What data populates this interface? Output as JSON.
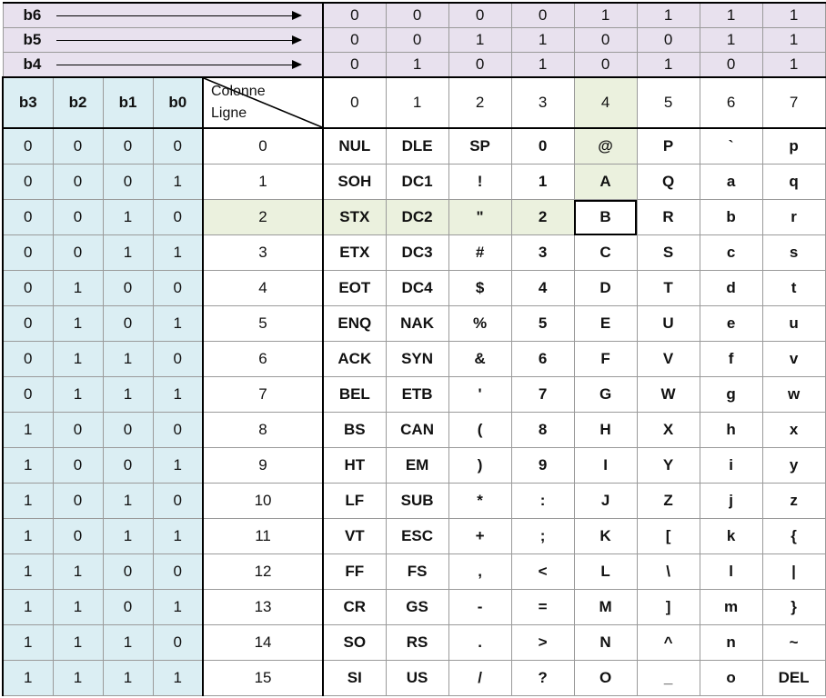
{
  "bit_rows": [
    {
      "label": "b6",
      "values": [
        "0",
        "0",
        "0",
        "0",
        "1",
        "1",
        "1",
        "1"
      ]
    },
    {
      "label": "b5",
      "values": [
        "0",
        "0",
        "1",
        "1",
        "0",
        "0",
        "1",
        "1"
      ]
    },
    {
      "label": "b4",
      "values": [
        "0",
        "1",
        "0",
        "1",
        "0",
        "1",
        "0",
        "1"
      ]
    }
  ],
  "header": {
    "bits": [
      "b3",
      "b2",
      "b1",
      "b0"
    ],
    "corner_top": "Colonne",
    "corner_bottom": "Ligne",
    "columns": [
      "0",
      "1",
      "2",
      "3",
      "4",
      "5",
      "6",
      "7"
    ]
  },
  "rows": [
    {
      "bits": [
        "0",
        "0",
        "0",
        "0"
      ],
      "line": "0",
      "chars": [
        "NUL",
        "DLE",
        "SP",
        "0",
        "@",
        "P",
        "`",
        "p"
      ]
    },
    {
      "bits": [
        "0",
        "0",
        "0",
        "1"
      ],
      "line": "1",
      "chars": [
        "SOH",
        "DC1",
        "!",
        "1",
        "A",
        "Q",
        "a",
        "q"
      ]
    },
    {
      "bits": [
        "0",
        "0",
        "1",
        "0"
      ],
      "line": "2",
      "chars": [
        "STX",
        "DC2",
        "\"",
        "2",
        "B",
        "R",
        "b",
        "r"
      ]
    },
    {
      "bits": [
        "0",
        "0",
        "1",
        "1"
      ],
      "line": "3",
      "chars": [
        "ETX",
        "DC3",
        "#",
        "3",
        "C",
        "S",
        "c",
        "s"
      ]
    },
    {
      "bits": [
        "0",
        "1",
        "0",
        "0"
      ],
      "line": "4",
      "chars": [
        "EOT",
        "DC4",
        "$",
        "4",
        "D",
        "T",
        "d",
        "t"
      ]
    },
    {
      "bits": [
        "0",
        "1",
        "0",
        "1"
      ],
      "line": "5",
      "chars": [
        "ENQ",
        "NAK",
        "%",
        "5",
        "E",
        "U",
        "e",
        "u"
      ]
    },
    {
      "bits": [
        "0",
        "1",
        "1",
        "0"
      ],
      "line": "6",
      "chars": [
        "ACK",
        "SYN",
        "&",
        "6",
        "F",
        "V",
        "f",
        "v"
      ]
    },
    {
      "bits": [
        "0",
        "1",
        "1",
        "1"
      ],
      "line": "7",
      "chars": [
        "BEL",
        "ETB",
        "'",
        "7",
        "G",
        "W",
        "g",
        "w"
      ]
    },
    {
      "bits": [
        "1",
        "0",
        "0",
        "0"
      ],
      "line": "8",
      "chars": [
        "BS",
        "CAN",
        "(",
        "8",
        "H",
        "X",
        "h",
        "x"
      ]
    },
    {
      "bits": [
        "1",
        "0",
        "0",
        "1"
      ],
      "line": "9",
      "chars": [
        "HT",
        "EM",
        ")",
        "9",
        "I",
        "Y",
        "i",
        "y"
      ]
    },
    {
      "bits": [
        "1",
        "0",
        "1",
        "0"
      ],
      "line": "10",
      "chars": [
        "LF",
        "SUB",
        "*",
        ":",
        "J",
        "Z",
        "j",
        "z"
      ]
    },
    {
      "bits": [
        "1",
        "0",
        "1",
        "1"
      ],
      "line": "11",
      "chars": [
        "VT",
        "ESC",
        "+",
        ";",
        "K",
        "[",
        "k",
        "{"
      ]
    },
    {
      "bits": [
        "1",
        "1",
        "0",
        "0"
      ],
      "line": "12",
      "chars": [
        "FF",
        "FS",
        ",",
        "<",
        "L",
        "\\",
        "l",
        "|"
      ]
    },
    {
      "bits": [
        "1",
        "1",
        "0",
        "1"
      ],
      "line": "13",
      "chars": [
        "CR",
        "GS",
        "-",
        "=",
        "M",
        "]",
        "m",
        "}"
      ]
    },
    {
      "bits": [
        "1",
        "1",
        "1",
        "0"
      ],
      "line": "14",
      "chars": [
        "SO",
        "RS",
        ".",
        ">",
        "N",
        "^",
        "n",
        "~"
      ]
    },
    {
      "bits": [
        "1",
        "1",
        "1",
        "1"
      ],
      "line": "15",
      "chars": [
        "SI",
        "US",
        "/",
        "?",
        "O",
        "_",
        "o",
        "DEL"
      ]
    }
  ],
  "highlight": {
    "column_index": 4,
    "row_index": 2,
    "selected_char": "B"
  },
  "colors": {
    "bit_header": "#e8e1ee",
    "bit_columns": "#dbeef3",
    "highlight": "#ebf1de"
  }
}
